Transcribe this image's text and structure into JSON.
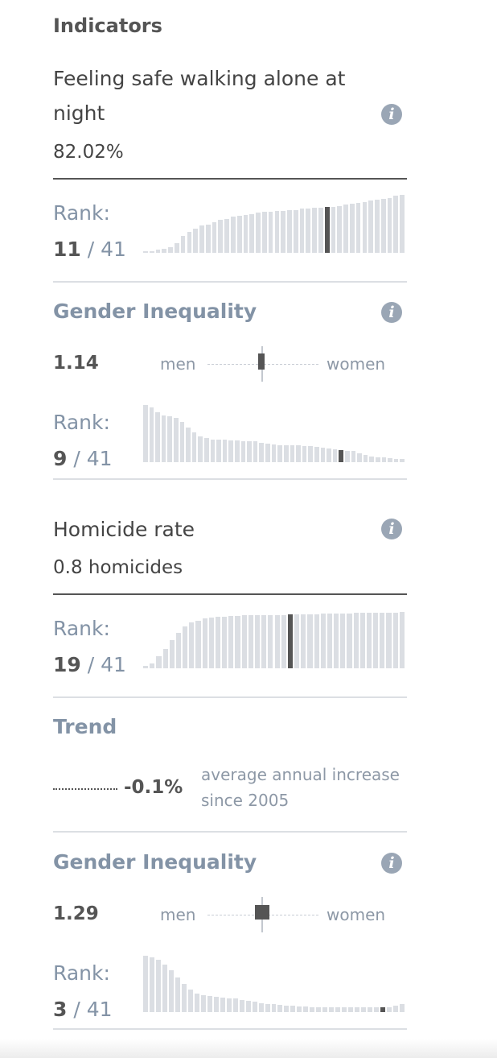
{
  "heading": "Indicators",
  "safe_walking": {
    "title": "Feeling safe walking alone at night",
    "value": "82.02%",
    "rank": {
      "label": "Rank:",
      "position": "11",
      "separator": "/",
      "total": "41"
    },
    "bars": [
      2,
      2,
      3,
      4,
      6,
      10,
      17,
      21,
      24,
      27,
      28,
      31,
      33,
      34,
      36,
      37,
      38,
      39,
      40,
      41,
      41,
      42,
      42,
      43,
      43,
      44,
      44,
      45,
      45,
      46,
      46,
      47,
      48,
      49,
      50,
      51,
      52,
      53,
      54,
      55,
      57,
      58
    ],
    "highlight_index": 29
  },
  "gender_inequality_1": {
    "title": "Gender Inequality",
    "value": "1.14",
    "men_label": "men",
    "women_label": "women",
    "marker_value": 1.14,
    "rank": {
      "label": "Rank:",
      "position": "9",
      "separator": "/",
      "total": "41"
    },
    "bars": [
      100,
      96,
      88,
      82,
      80,
      77,
      70,
      60,
      52,
      45,
      42,
      40,
      40,
      39,
      38,
      38,
      37,
      37,
      36,
      34,
      32,
      31,
      30,
      30,
      29,
      29,
      28,
      28,
      27,
      26,
      24,
      22,
      21,
      20,
      20,
      15,
      12,
      10,
      9,
      8,
      7,
      6,
      6
    ],
    "highlight_index": 32
  },
  "homicide": {
    "title": "Homicide rate",
    "value": "0.8 homicides",
    "rank": {
      "label": "Rank:",
      "position": "19",
      "separator": "/",
      "total": "41"
    },
    "bars": [
      5,
      8,
      22,
      35,
      50,
      63,
      75,
      82,
      85,
      88,
      90,
      91,
      92,
      93,
      93,
      94,
      94,
      94,
      95,
      95,
      95,
      95,
      96,
      96,
      96,
      96,
      96,
      97,
      97,
      97,
      97,
      97,
      98,
      98,
      98,
      98,
      99,
      99,
      99,
      100
    ],
    "highlight_index": 22
  },
  "trend": {
    "title": "Trend",
    "value": "-0.1%",
    "description": "average annual increase since 2005"
  },
  "gender_inequality_2": {
    "title": "Gender Inequality",
    "value": "1.29",
    "men_label": "men",
    "women_label": "women",
    "marker_value": 1.29,
    "rank": {
      "label": "Rank:",
      "position": "3",
      "separator": "/",
      "total": "41"
    },
    "bars": [
      100,
      97,
      93,
      85,
      75,
      62,
      50,
      40,
      33,
      30,
      28,
      27,
      26,
      25,
      24,
      22,
      20,
      18,
      16,
      15,
      14,
      13,
      12,
      11,
      10,
      10,
      9,
      9,
      9,
      8,
      8,
      8,
      8,
      8,
      8,
      8,
      8,
      8,
      8,
      12,
      14
    ],
    "highlight_index": 37
  },
  "colors": {
    "bar": "#dbdee3",
    "bar_highlight": "#555555",
    "accent_text": "#8393a6",
    "icon": "#9aa6b5"
  },
  "icons": {
    "info": "info-icon"
  },
  "info_glyph": "i"
}
